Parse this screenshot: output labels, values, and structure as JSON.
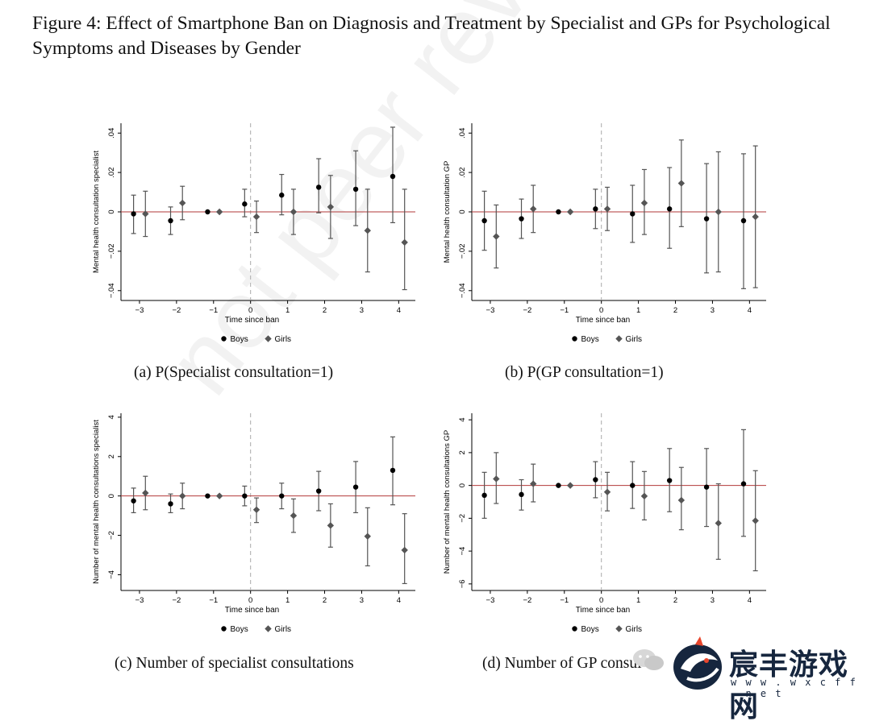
{
  "figure": {
    "title": "Figure 4: Effect of Smartphone Ban on Diagnosis and Treatment by Specialist and GPs for Psychological Symptoms and Diseases by Gender"
  },
  "watermark": {
    "text": "not peer review"
  },
  "logo": {
    "name": "宸丰游戏网",
    "url": "w w w . w x c f f . n e t",
    "brand_color": "#16263e",
    "icon": "dragon-logo-icon"
  },
  "colors": {
    "zero_line": "#b23a3a",
    "boys": "#000000",
    "girls": "#555555",
    "ci": "#555555",
    "axis": "#000000"
  },
  "chart_data": [
    {
      "type": "scatter",
      "caption": "(a) P(Specialist consultation=1)",
      "ylabel": "Mental health consultation specialist",
      "xlabel": "Time since ban",
      "ylim": [
        -0.045,
        0.045
      ],
      "yticks": [
        -0.04,
        -0.02,
        0,
        0.02,
        0.04
      ],
      "ytick_labels": [
        "−.04",
        "−.02",
        "0",
        ".02",
        ".04"
      ],
      "xlim": [
        -3.5,
        4.45
      ],
      "xticks": [
        -3,
        -2,
        -1,
        0,
        1,
        2,
        3,
        4
      ],
      "xtick_labels": [
        "−3",
        "−2",
        "−1",
        "0",
        "1",
        "2",
        "3",
        "4"
      ],
      "ban_line_x": 0,
      "legend": [
        "Boys",
        "Girls"
      ],
      "legend_position": "bottom",
      "series": [
        {
          "name": "Boys",
          "marker": "circle",
          "x": [
            -3,
            -2,
            -1,
            0,
            1,
            2,
            3,
            4
          ],
          "y": [
            -0.001,
            -0.0045,
            0,
            0.004,
            0.0085,
            0.0125,
            0.0115,
            0.018
          ],
          "ci_low": [
            -0.011,
            -0.0115,
            0,
            -0.0025,
            -0.0015,
            -0.0005,
            -0.007,
            -0.0055
          ],
          "ci_high": [
            0.0085,
            0.0025,
            0,
            0.0115,
            0.019,
            0.027,
            0.031,
            0.043
          ]
        },
        {
          "name": "Girls",
          "marker": "diamond",
          "x": [
            -3,
            -2,
            -1,
            0,
            1,
            2,
            3,
            4
          ],
          "y": [
            -0.001,
            0.0045,
            0,
            -0.0025,
            0,
            0.0025,
            -0.0095,
            -0.0155
          ],
          "ci_low": [
            -0.0125,
            -0.004,
            0,
            -0.0105,
            -0.0115,
            -0.0135,
            -0.0305,
            -0.0395
          ],
          "ci_high": [
            0.0105,
            0.013,
            0,
            0.0055,
            0.0115,
            0.0185,
            0.0115,
            0.0115
          ]
        }
      ]
    },
    {
      "type": "scatter",
      "caption": "(b) P(GP consultation=1)",
      "ylabel": "Mental health consultation GP",
      "xlabel": "Time since ban",
      "ylim": [
        -0.045,
        0.045
      ],
      "yticks": [
        -0.04,
        -0.02,
        0,
        0.02,
        0.04
      ],
      "ytick_labels": [
        "−.04",
        "−.02",
        "0",
        ".02",
        ".04"
      ],
      "xlim": [
        -3.5,
        4.45
      ],
      "xticks": [
        -3,
        -2,
        -1,
        0,
        1,
        2,
        3,
        4
      ],
      "xtick_labels": [
        "−3",
        "−2",
        "−1",
        "0",
        "1",
        "2",
        "3",
        "4"
      ],
      "ban_line_x": 0,
      "legend": [
        "Boys",
        "Girls"
      ],
      "legend_position": "bottom",
      "series": [
        {
          "name": "Boys",
          "marker": "circle",
          "x": [
            -3,
            -2,
            -1,
            0,
            1,
            2,
            3,
            4
          ],
          "y": [
            -0.0045,
            -0.0035,
            0,
            0.0015,
            -0.001,
            0.0015,
            -0.0035,
            -0.0045
          ],
          "ci_low": [
            -0.0195,
            -0.0135,
            0,
            -0.0085,
            -0.0155,
            -0.0185,
            -0.031,
            -0.039
          ],
          "ci_high": [
            0.0105,
            0.0065,
            0,
            0.0115,
            0.0135,
            0.0225,
            0.0245,
            0.0295
          ]
        },
        {
          "name": "Girls",
          "marker": "diamond",
          "x": [
            -3,
            -2,
            -1,
            0,
            1,
            2,
            3,
            4
          ],
          "y": [
            -0.0125,
            0.0015,
            0,
            0.0015,
            0.0045,
            0.0145,
            0,
            -0.0025
          ],
          "ci_low": [
            -0.0285,
            -0.0105,
            0,
            -0.0095,
            -0.0115,
            -0.0075,
            -0.0305,
            -0.0385
          ],
          "ci_high": [
            0.0035,
            0.0135,
            0,
            0.0125,
            0.0215,
            0.0365,
            0.0305,
            0.0335
          ]
        }
      ]
    },
    {
      "type": "scatter",
      "caption": "(c) Number of specialist consultations",
      "ylabel": "Number of mental health consultations specialist",
      "xlabel": "Time since ban",
      "ylim": [
        -4.8,
        4.2
      ],
      "yticks": [
        -4,
        -2,
        0,
        2,
        4
      ],
      "ytick_labels": [
        "−4",
        "−2",
        "0",
        "2",
        "4"
      ],
      "xlim": [
        -3.5,
        4.45
      ],
      "xticks": [
        -3,
        -2,
        -1,
        0,
        1,
        2,
        3,
        4
      ],
      "xtick_labels": [
        "−3",
        "−2",
        "−1",
        "0",
        "1",
        "2",
        "3",
        "4"
      ],
      "ban_line_x": 0,
      "legend": [
        "Boys",
        "Girls"
      ],
      "legend_position": "bottom",
      "series": [
        {
          "name": "Boys",
          "marker": "circle",
          "x": [
            -3,
            -2,
            -1,
            0,
            1,
            2,
            3,
            4
          ],
          "y": [
            -0.25,
            -0.4,
            0,
            0,
            0,
            0.25,
            0.45,
            1.3
          ],
          "ci_low": [
            -0.85,
            -0.85,
            0,
            -0.5,
            -0.65,
            -0.75,
            -0.85,
            -0.45
          ],
          "ci_high": [
            0.4,
            0.1,
            0,
            0.5,
            0.65,
            1.25,
            1.75,
            3.0
          ]
        },
        {
          "name": "Girls",
          "marker": "diamond",
          "x": [
            -3,
            -2,
            -1,
            0,
            1,
            2,
            3,
            4
          ],
          "y": [
            0.15,
            0,
            0,
            -0.7,
            -1.0,
            -1.5,
            -2.05,
            -2.75
          ],
          "ci_low": [
            -0.7,
            -0.65,
            0,
            -1.35,
            -1.85,
            -2.6,
            -3.55,
            -4.45
          ],
          "ci_high": [
            1.0,
            0.65,
            0,
            -0.1,
            -0.15,
            -0.4,
            -0.6,
            -0.9
          ]
        }
      ]
    },
    {
      "type": "scatter",
      "caption": "(d) Number of GP consultations",
      "caption_visible": "(d) Number of GP consul",
      "ylabel": "Number of mental health consultations GP",
      "xlabel": "Time since ban",
      "ylim": [
        -6.4,
        4.4
      ],
      "yticks": [
        -6,
        -4,
        -2,
        0,
        2,
        4
      ],
      "ytick_labels": [
        "−6",
        "−4",
        "−2",
        "0",
        "2",
        "4"
      ],
      "xlim": [
        -3.5,
        4.45
      ],
      "xticks": [
        -3,
        -2,
        -1,
        0,
        1,
        2,
        3,
        4
      ],
      "xtick_labels": [
        "−3",
        "−2",
        "−1",
        "0",
        "1",
        "2",
        "3",
        "4"
      ],
      "ban_line_x": 0,
      "legend": [
        "Boys",
        "Girls"
      ],
      "legend_position": "bottom",
      "series": [
        {
          "name": "Boys",
          "marker": "circle",
          "x": [
            -3,
            -2,
            -1,
            0,
            1,
            2,
            3,
            4
          ],
          "y": [
            -0.6,
            -0.55,
            0,
            0.35,
            0,
            0.3,
            -0.1,
            0.1
          ],
          "ci_low": [
            -2.0,
            -1.5,
            0,
            -0.75,
            -1.4,
            -1.6,
            -2.5,
            -3.1
          ],
          "ci_high": [
            0.8,
            0.35,
            0,
            1.45,
            1.45,
            2.25,
            2.25,
            3.4
          ]
        },
        {
          "name": "Girls",
          "marker": "diamond",
          "x": [
            -3,
            -2,
            -1,
            0,
            1,
            2,
            3,
            4
          ],
          "y": [
            0.4,
            0.1,
            0,
            -0.4,
            -0.65,
            -0.9,
            -2.3,
            -2.15
          ],
          "ci_low": [
            -1.1,
            -1.0,
            0,
            -1.55,
            -2.1,
            -2.7,
            -4.5,
            -5.2
          ],
          "ci_high": [
            2.0,
            1.3,
            0,
            0.8,
            0.85,
            1.1,
            0.1,
            0.9
          ]
        }
      ]
    }
  ]
}
